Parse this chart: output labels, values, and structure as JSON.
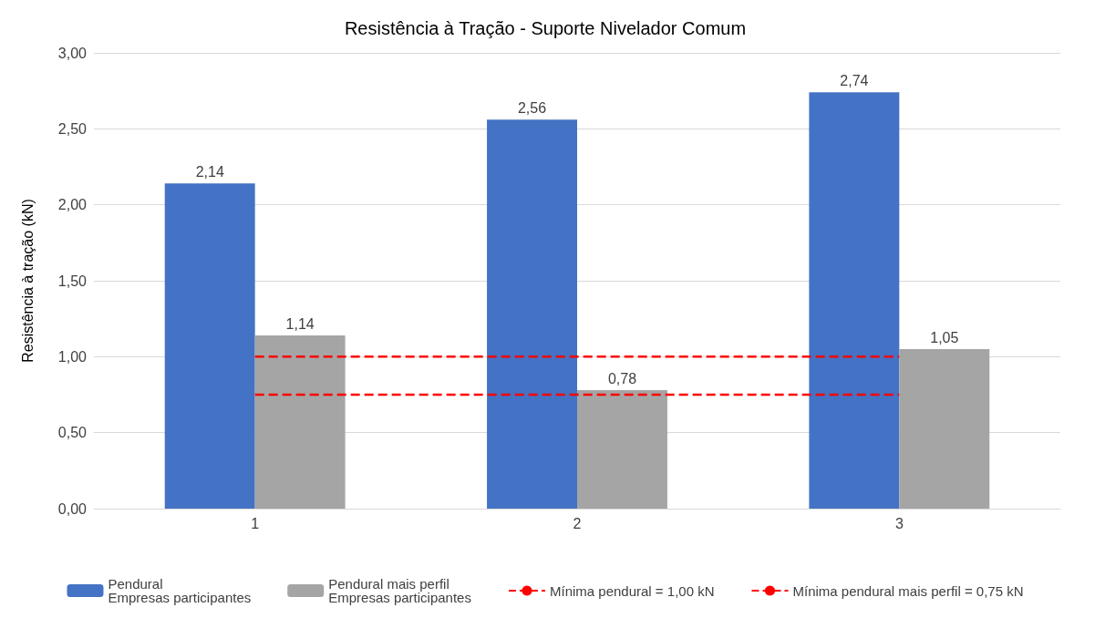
{
  "chart_data": {
    "type": "bar",
    "title": "Resistência à Tração - Suporte Nivelador Comum",
    "ylabel": "Resistência à tração (kN)",
    "categories": [
      "1",
      "2",
      "3"
    ],
    "series": [
      {
        "name": "Pendural\nEmpresas participantes",
        "color": "#4472c4",
        "values": [
          2.14,
          2.56,
          2.74
        ],
        "value_labels": [
          "2,14",
          "2,56",
          "2,74"
        ]
      },
      {
        "name": "Pendural mais perfil\nEmpresas participantes",
        "color": "#a5a5a5",
        "values": [
          1.14,
          0.78,
          1.05
        ],
        "value_labels": [
          "1,14",
          "0,78",
          "1,05"
        ]
      },
      {
        "name": "Mínima pendural = 1,00 kN",
        "type": "line",
        "color": "#ff0000",
        "values": [
          1.0,
          1.0,
          1.0
        ],
        "marker": "none",
        "line_style": "dashed"
      },
      {
        "name": "Mínima pendural mais perfil = 0,75 kN",
        "type": "line",
        "color": "#ff0000",
        "values": [
          0.75,
          0.75,
          0.75
        ],
        "marker": "none",
        "line_style": "dashed"
      }
    ],
    "ylim": [
      0,
      3
    ],
    "yticks": [
      {
        "value": 0,
        "label": "0,00"
      },
      {
        "value": 0.5,
        "label": "0,50"
      },
      {
        "value": 1,
        "label": "1,00"
      },
      {
        "value": 1.5,
        "label": "1,50"
      },
      {
        "value": 2,
        "label": "2,00"
      },
      {
        "value": 2.5,
        "label": "2,50"
      },
      {
        "value": 3,
        "label": "3,00"
      }
    ],
    "grid": "y",
    "legend": "bottom"
  }
}
